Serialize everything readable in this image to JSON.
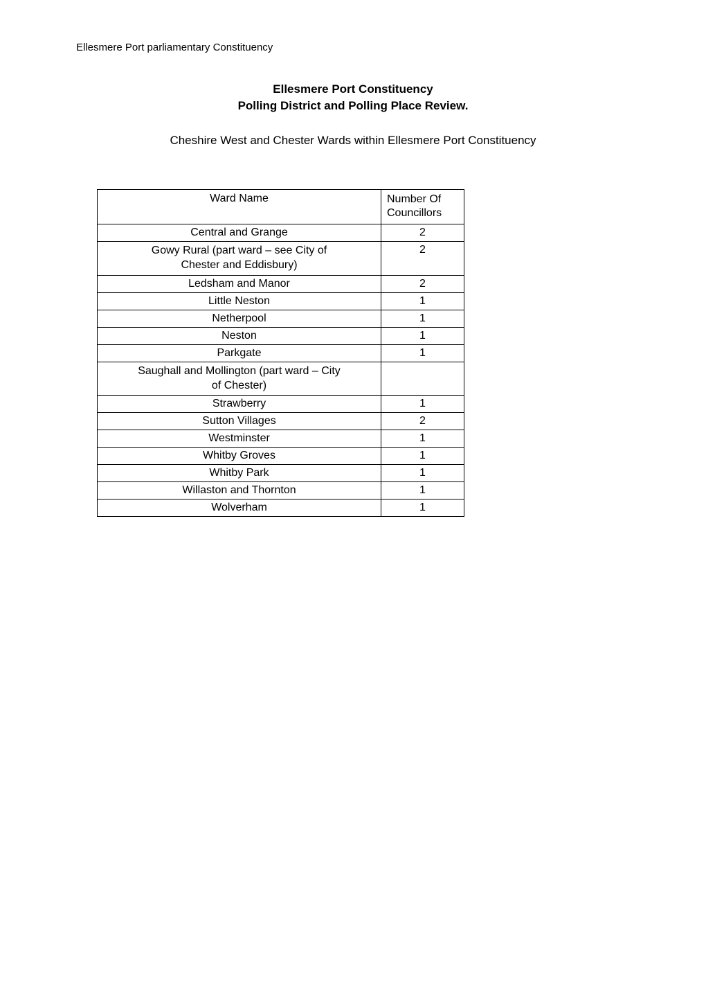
{
  "header": {
    "label": "Ellesmere Port parliamentary Constituency"
  },
  "title": {
    "line1": "Ellesmere Port Constituency",
    "line2": "Polling District and Polling Place Review."
  },
  "subtitle": "Cheshire West and Chester Wards within Ellesmere Port Constituency",
  "table": {
    "columns": {
      "ward_header": "Ward Name",
      "num_header_line1": "Number Of",
      "num_header_line2": "Councillors"
    },
    "rows": [
      {
        "ward": "Central and Grange",
        "num": "2"
      },
      {
        "ward": "Gowy Rural (part ward – see City of\nChester and Eddisbury)",
        "num": "2"
      },
      {
        "ward": "Ledsham and Manor",
        "num": "2"
      },
      {
        "ward": "Little Neston",
        "num": "1"
      },
      {
        "ward": "Netherpool",
        "num": "1"
      },
      {
        "ward": "Neston",
        "num": "1"
      },
      {
        "ward": "Parkgate",
        "num": "1"
      },
      {
        "ward": "Saughall and Mollington (part ward – City\nof Chester)",
        "num": ""
      },
      {
        "ward": "Strawberry",
        "num": "1"
      },
      {
        "ward": "Sutton Villages",
        "num": "2"
      },
      {
        "ward": "Westminster",
        "num": "1"
      },
      {
        "ward": "Whitby Groves",
        "num": "1"
      },
      {
        "ward": "Whitby Park",
        "num": "1"
      },
      {
        "ward": "Willaston and Thornton",
        "num": "1"
      },
      {
        "ward": "Wolverham",
        "num": "1"
      }
    ]
  },
  "styling": {
    "background_color": "#ffffff",
    "text_color": "#000000",
    "border_color": "#000000",
    "header_fontsize": 15,
    "title_fontsize": 17,
    "subtitle_fontsize": 17,
    "table_fontsize": 16,
    "ward_col_width": 410,
    "num_col_width": 120
  }
}
